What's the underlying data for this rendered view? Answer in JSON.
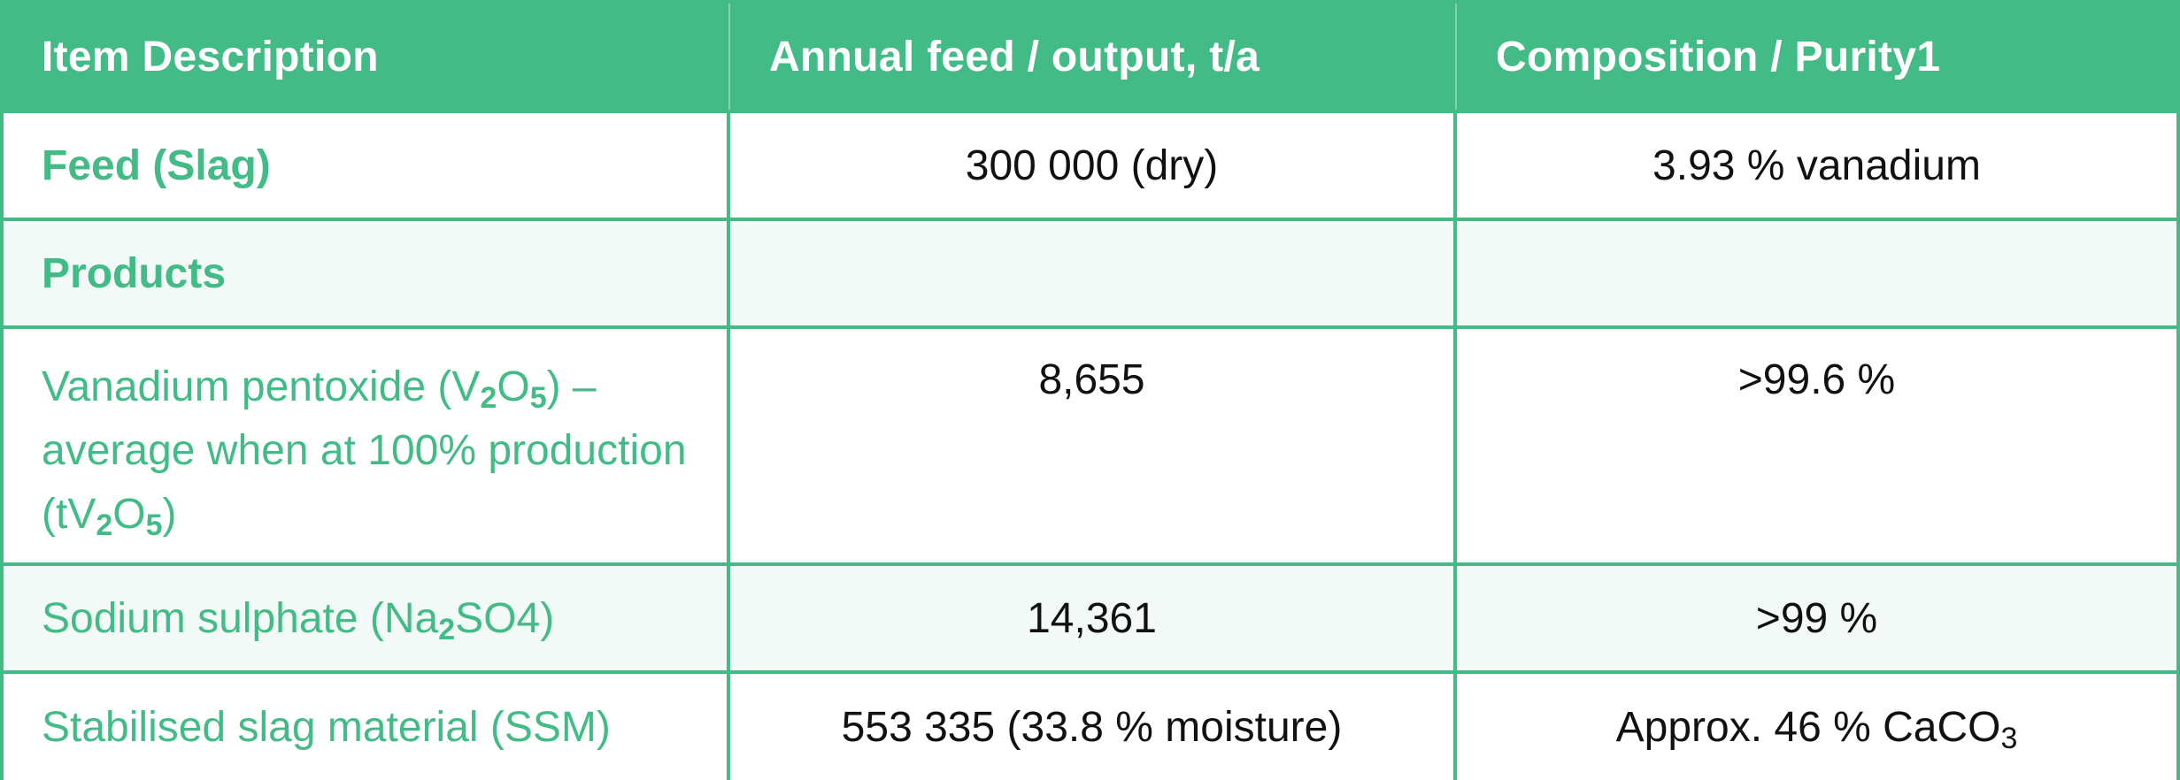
{
  "table": {
    "headers": {
      "item": "Item Description",
      "annual": "Annual feed / output, t/a",
      "composition": "Composition / Purity1"
    },
    "rows": {
      "feed": {
        "label": "Feed (Slag)",
        "annual": "300 000 (dry)",
        "composition": "3.93 % vanadium"
      },
      "products": {
        "label": "Products",
        "annual": "",
        "composition": ""
      },
      "vanadium": {
        "label_a": "Vanadium pentoxide (V",
        "label_sub1": "2",
        "label_b": "O",
        "label_sub2": "5",
        "label_c": ") – average when at 100% production (tV",
        "label_sub3": "2",
        "label_d": "O",
        "label_sub4": "5",
        "label_e": ")",
        "annual": "8,655",
        "composition": ">99.6 %"
      },
      "sodium": {
        "label_a": "Sodium sulphate (Na",
        "label_sub": "2",
        "label_b": "SO4)",
        "annual": "14,361",
        "composition": ">99 %"
      },
      "ssm": {
        "label": "Stabilised slag material (SSM)",
        "annual": "553 335 (33.8 % moisture)",
        "composition_a": "Approx. 46 % CaCO",
        "composition_sub": "3"
      }
    }
  },
  "colors": {
    "accent": "#43bb86",
    "alt_row": "#f3f9f6",
    "text": "#111111"
  }
}
